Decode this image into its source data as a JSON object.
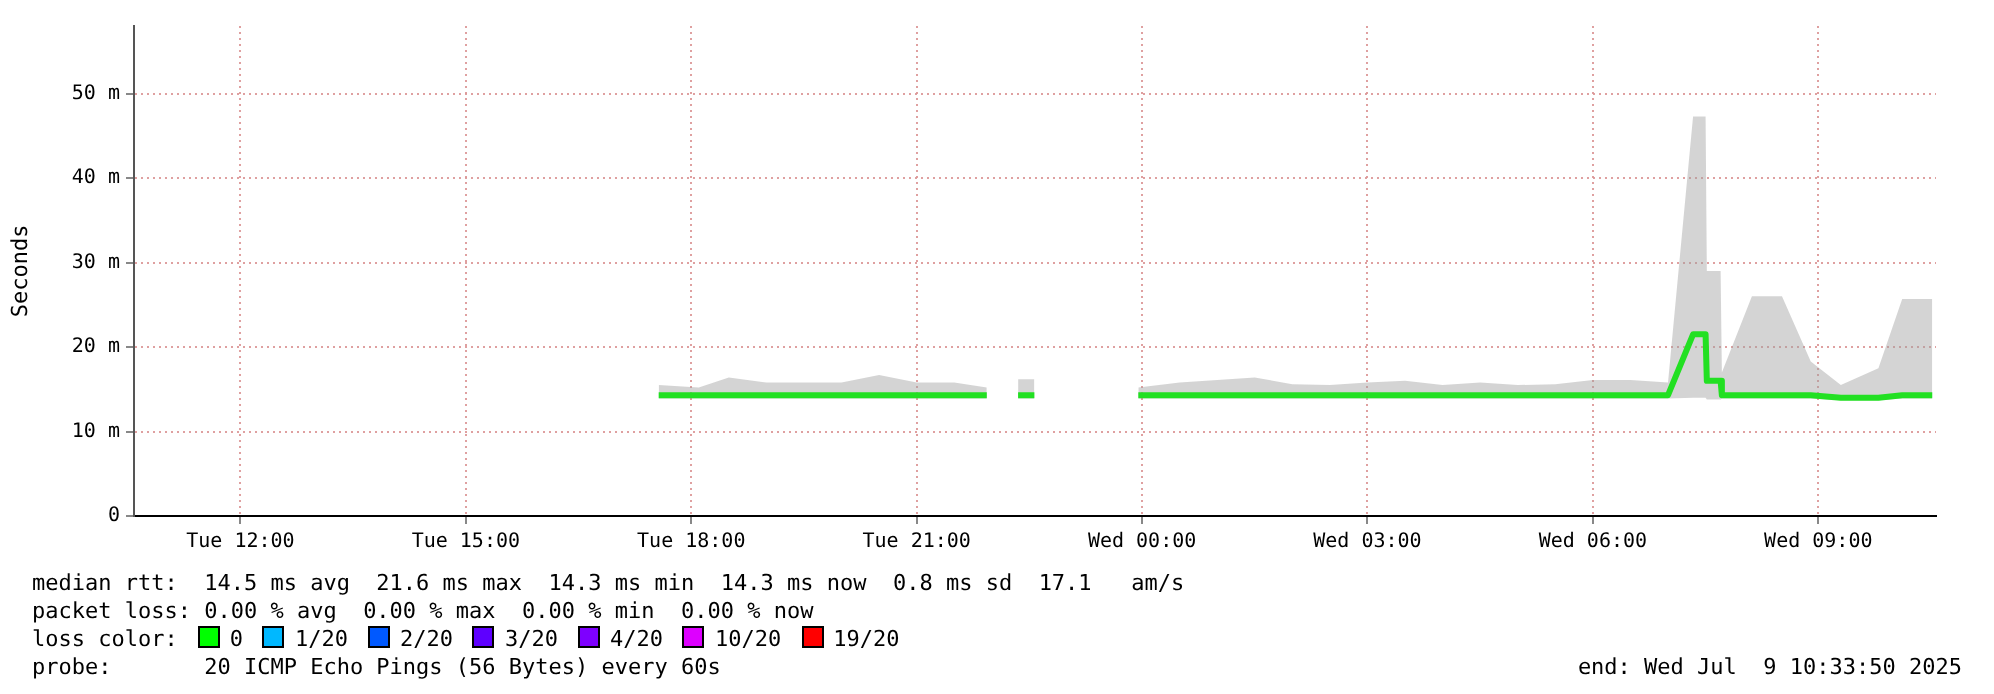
{
  "chart_data": {
    "type": "line",
    "ylabel": "Seconds",
    "xlim": [
      "2025-07-08T10:35",
      "2025-07-09T10:34"
    ],
    "xticks": [
      {
        "value": "2025-07-08T12:00",
        "label": "Tue 12:00"
      },
      {
        "value": "2025-07-08T15:00",
        "label": "Tue 15:00"
      },
      {
        "value": "2025-07-08T18:00",
        "label": "Tue 18:00"
      },
      {
        "value": "2025-07-08T21:00",
        "label": "Tue 21:00"
      },
      {
        "value": "2025-07-09T00:00",
        "label": "Wed 00:00"
      },
      {
        "value": "2025-07-09T03:00",
        "label": "Wed 03:00"
      },
      {
        "value": "2025-07-09T06:00",
        "label": "Wed 06:00"
      },
      {
        "value": "2025-07-09T09:00",
        "label": "Wed 09:00"
      }
    ],
    "ylim": [
      0,
      58
    ],
    "yticks": [
      0,
      {
        "value": 10,
        "label": "10 m"
      },
      {
        "value": 20,
        "label": "20 m"
      },
      {
        "value": 30,
        "label": "30 m"
      },
      {
        "value": 40,
        "label": "40 m"
      },
      {
        "value": 50,
        "label": "50 m"
      }
    ],
    "grid": true,
    "legend": false,
    "marker": "none",
    "line_style": "solid",
    "series": [
      {
        "color": "#22e022",
        "x": [
          "2025-07-08T17:34",
          "2025-07-08T18:06",
          "2025-07-08T18:30",
          "2025-07-08T19:00",
          "2025-07-08T19:30",
          "2025-07-08T20:00",
          "2025-07-08T20:30",
          "2025-07-08T21:00",
          "2025-07-08T21:30",
          "2025-07-08T21:56",
          "2025-07-08T22:06",
          "2025-07-08T22:21",
          "2025-07-08T22:34",
          "2025-07-08T23:00",
          "2025-07-08T23:57",
          "2025-07-09T00:30",
          "2025-07-09T01:00",
          "2025-07-09T01:30",
          "2025-07-09T02:00",
          "2025-07-09T02:30",
          "2025-07-09T03:00",
          "2025-07-09T03:30",
          "2025-07-09T04:00",
          "2025-07-09T04:30",
          "2025-07-09T05:00",
          "2025-07-09T05:30",
          "2025-07-09T06:00",
          "2025-07-09T06:30",
          "2025-07-09T07:00",
          "2025-07-09T07:20",
          "2025-07-09T07:30",
          "2025-07-09T07:31",
          "2025-07-09T07:42",
          "2025-07-09T07:43",
          "2025-07-09T08:07",
          "2025-07-09T08:31",
          "2025-07-09T08:54",
          "2025-07-09T09:18",
          "2025-07-09T09:48",
          "2025-07-09T10:07",
          "2025-07-09T10:18",
          "2025-07-09T10:31"
        ],
        "values": [
          14.3,
          14.3,
          14.3,
          14.3,
          14.3,
          14.3,
          14.3,
          14.3,
          14.3,
          14.3,
          null,
          14.3,
          14.3,
          null,
          14.3,
          14.3,
          14.3,
          14.3,
          14.3,
          14.3,
          14.3,
          14.3,
          14.3,
          14.3,
          14.3,
          14.3,
          14.3,
          14.3,
          14.3,
          21.5,
          21.5,
          16.0,
          16.0,
          14.3,
          14.3,
          14.3,
          14.3,
          14.0,
          14.0,
          14.3,
          14.3,
          14.3
        ],
        "lower": [
          13.9,
          13.9,
          13.9,
          13.9,
          13.9,
          13.9,
          13.9,
          13.9,
          13.9,
          13.9,
          null,
          13.9,
          13.9,
          null,
          13.9,
          13.9,
          13.9,
          13.9,
          13.9,
          13.9,
          13.9,
          13.9,
          13.9,
          13.9,
          13.9,
          13.9,
          13.9,
          13.9,
          13.9,
          14.0,
          14.0,
          13.8,
          13.8,
          13.9,
          13.9,
          13.9,
          13.9,
          13.7,
          13.7,
          13.9,
          13.9,
          13.9
        ],
        "upper": [
          15.5,
          15.2,
          16.4,
          15.8,
          15.8,
          15.8,
          16.7,
          15.8,
          15.8,
          15.2,
          null,
          16.2,
          16.2,
          null,
          15.2,
          15.8,
          16.1,
          16.4,
          15.6,
          15.5,
          15.8,
          16.0,
          15.5,
          15.8,
          15.5,
          15.6,
          16.1,
          16.1,
          15.8,
          47.3,
          47.3,
          29.0,
          29.0,
          17.0,
          26.0,
          26.0,
          18.3,
          15.5,
          17.5,
          25.7,
          25.7,
          25.7
        ]
      }
    ],
    "annotations": [
      "median rtt:  14.5 ms avg  21.6 ms max  14.3 ms min  14.3 ms now  0.8 ms sd  17.1   am/s",
      "packet loss: 0.00 % avg  0.00 % max  0.00 % min  0.00 % now",
      "loss color:",
      "0",
      "1/20",
      "2/20",
      "3/20",
      "4/20",
      "10/20",
      "19/20",
      "probe:       20 ICMP Echo Pings (56 Bytes) every 60s",
      "end: Wed Jul  9 10:33:50 2025"
    ]
  }
}
